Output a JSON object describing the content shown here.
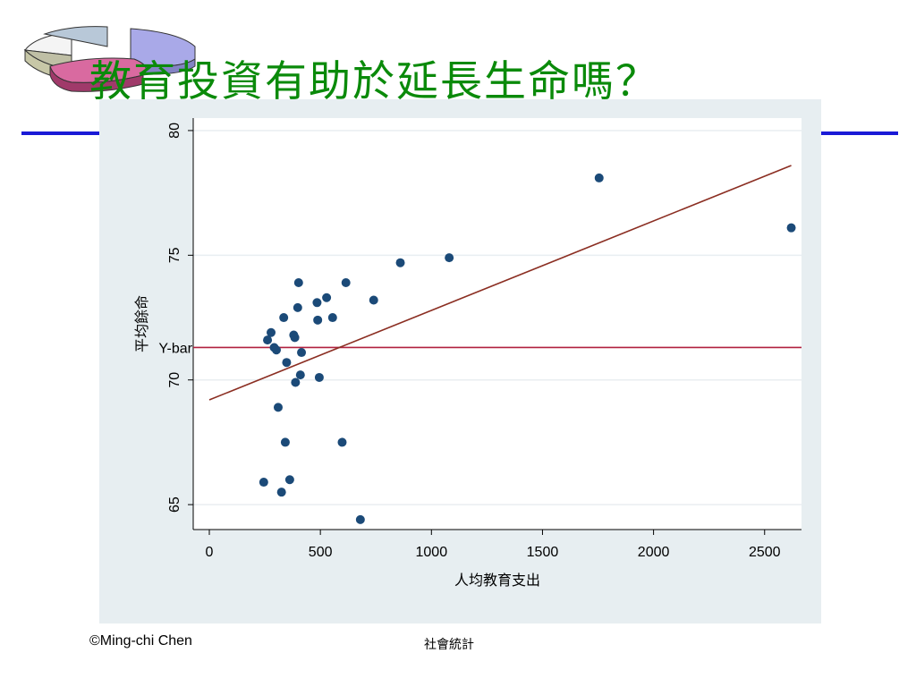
{
  "slide": {
    "title": "教育投資有助於延長生命嗎？",
    "footer_left": "©Ming-chi Chen",
    "footer_center": "社會統計"
  },
  "colors": {
    "title": "#0a8a0a",
    "rule": "#1a1ad6",
    "panel_bg": "#e7eef1",
    "points": "#1b4a78",
    "regression_line": "#8b2e22",
    "mean_line": "#b0213f",
    "grid": "#e9eef1"
  },
  "chart_data": {
    "type": "scatter",
    "title": "",
    "xlabel": "人均教育支出",
    "ylabel": "平均餘命",
    "xlim": [
      0,
      2650
    ],
    "ylim": [
      64,
      80.5
    ],
    "x_ticks": [
      0,
      500,
      1000,
      1500,
      2000,
      2500
    ],
    "y_ticks": [
      65,
      70,
      75,
      80
    ],
    "grid": "horizontal",
    "points": [
      {
        "x": 245,
        "y": 65.9
      },
      {
        "x": 262,
        "y": 71.6
      },
      {
        "x": 278,
        "y": 71.9
      },
      {
        "x": 292,
        "y": 71.3
      },
      {
        "x": 302,
        "y": 71.2
      },
      {
        "x": 310,
        "y": 68.9
      },
      {
        "x": 325,
        "y": 65.5
      },
      {
        "x": 335,
        "y": 72.5
      },
      {
        "x": 342,
        "y": 67.5
      },
      {
        "x": 348,
        "y": 70.7
      },
      {
        "x": 362,
        "y": 66.0
      },
      {
        "x": 380,
        "y": 71.8
      },
      {
        "x": 385,
        "y": 71.7
      },
      {
        "x": 388,
        "y": 69.9
      },
      {
        "x": 398,
        "y": 72.9
      },
      {
        "x": 402,
        "y": 73.9
      },
      {
        "x": 410,
        "y": 70.2
      },
      {
        "x": 415,
        "y": 71.1
      },
      {
        "x": 485,
        "y": 73.1
      },
      {
        "x": 488,
        "y": 72.4
      },
      {
        "x": 495,
        "y": 70.1
      },
      {
        "x": 528,
        "y": 73.3
      },
      {
        "x": 555,
        "y": 72.5
      },
      {
        "x": 598,
        "y": 67.5
      },
      {
        "x": 615,
        "y": 73.9
      },
      {
        "x": 680,
        "y": 64.4
      },
      {
        "x": 740,
        "y": 73.2
      },
      {
        "x": 860,
        "y": 74.7
      },
      {
        "x": 1080,
        "y": 74.9
      },
      {
        "x": 1755,
        "y": 78.1
      },
      {
        "x": 2620,
        "y": 76.1
      }
    ],
    "regression_line": {
      "x": [
        0,
        2620
      ],
      "y": [
        69.2,
        78.6
      ]
    },
    "mean_line": {
      "y": 71.3,
      "label": "Y-bar"
    }
  }
}
